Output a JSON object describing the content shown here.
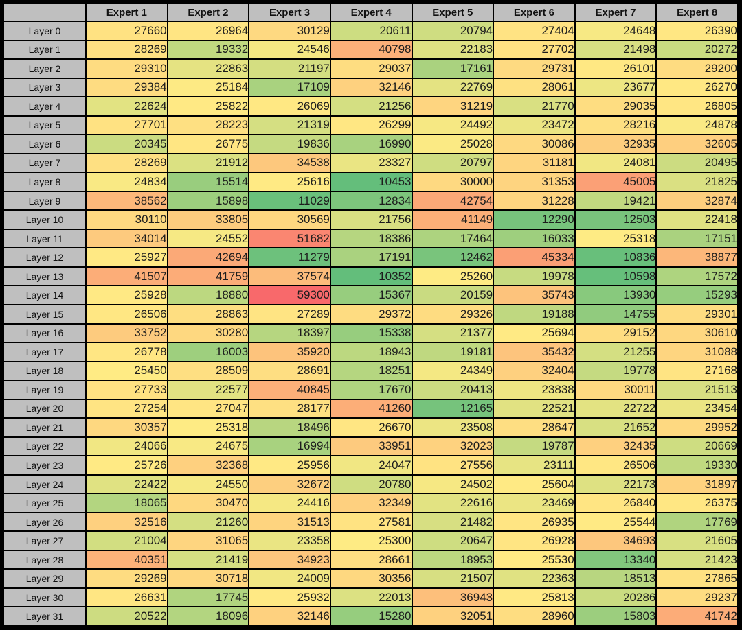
{
  "figure": {
    "background_color": "#000000",
    "grid_color": "#000000",
    "header_bg_color": "#BFBFBF",
    "header_text_color": "#111111",
    "cell_text_color": "#1d1d1d",
    "corner_label": ""
  },
  "chart_data": {
    "type": "heatmap",
    "title": "",
    "xlabel": "",
    "ylabel": "",
    "legend": "none",
    "x_labels": [
      "Expert 1",
      "Expert 2",
      "Expert 3",
      "Expert 4",
      "Expert 5",
      "Expert 6",
      "Expert 7",
      "Expert 8"
    ],
    "y_labels": [
      "Layer 0",
      "Layer 1",
      "Layer 2",
      "Layer 3",
      "Layer 4",
      "Layer 5",
      "Layer 6",
      "Layer 7",
      "Layer 8",
      "Layer 9",
      "Layer 10",
      "Layer 11",
      "Layer 12",
      "Layer 13",
      "Layer 14",
      "Layer 15",
      "Layer 16",
      "Layer 17",
      "Layer 18",
      "Layer 19",
      "Layer 20",
      "Layer 21",
      "Layer 22",
      "Layer 23",
      "Layer 24",
      "Layer 25",
      "Layer 26",
      "Layer 27",
      "Layer 28",
      "Layer 29",
      "Layer 30",
      "Layer 31"
    ],
    "values": [
      [
        27660,
        26964,
        30129,
        20611,
        20794,
        27404,
        24648,
        26390
      ],
      [
        28269,
        19332,
        24546,
        40798,
        22183,
        27702,
        21498,
        20272
      ],
      [
        29310,
        22863,
        21197,
        29037,
        17161,
        29731,
        26101,
        29200
      ],
      [
        29384,
        25184,
        17109,
        32146,
        22769,
        28061,
        23677,
        26270
      ],
      [
        22624,
        25822,
        26069,
        21256,
        31219,
        21770,
        29035,
        26805
      ],
      [
        27701,
        28223,
        21319,
        26299,
        24492,
        23472,
        28216,
        24878
      ],
      [
        20345,
        26775,
        19836,
        16990,
        25028,
        30086,
        32935,
        32605
      ],
      [
        28269,
        21912,
        34538,
        23327,
        20797,
        31181,
        24081,
        20495
      ],
      [
        24834,
        15514,
        25616,
        10453,
        30000,
        31353,
        45005,
        21825
      ],
      [
        38562,
        15898,
        11029,
        12834,
        42754,
        31228,
        19421,
        32874
      ],
      [
        30110,
        33805,
        30569,
        21756,
        41149,
        12290,
        12503,
        22418
      ],
      [
        34014,
        24552,
        51682,
        18386,
        17464,
        16033,
        25318,
        17151
      ],
      [
        25927,
        42694,
        11279,
        17191,
        12462,
        45334,
        10836,
        38877
      ],
      [
        41507,
        41759,
        37574,
        10352,
        25260,
        19978,
        10598,
        17572
      ],
      [
        25928,
        18880,
        59300,
        15367,
        20159,
        35743,
        13930,
        15293
      ],
      [
        26506,
        28863,
        27289,
        29372,
        29326,
        19188,
        14755,
        29301
      ],
      [
        33752,
        30280,
        18397,
        15338,
        21377,
        25694,
        29152,
        30610
      ],
      [
        26778,
        16003,
        35920,
        18943,
        19181,
        35432,
        21255,
        31088
      ],
      [
        25450,
        28509,
        28691,
        18251,
        24349,
        32404,
        19778,
        27168
      ],
      [
        27733,
        22577,
        40845,
        17670,
        20413,
        23838,
        30011,
        21513
      ],
      [
        27254,
        27047,
        28177,
        41260,
        12165,
        22521,
        22722,
        23454
      ],
      [
        30357,
        25318,
        18496,
        26670,
        23508,
        28647,
        21652,
        29952
      ],
      [
        24066,
        24675,
        16994,
        33951,
        32023,
        19787,
        32435,
        20669
      ],
      [
        25726,
        32368,
        25956,
        24047,
        27556,
        23111,
        26506,
        19330
      ],
      [
        22422,
        24550,
        32672,
        20780,
        24502,
        25604,
        22173,
        31897
      ],
      [
        18065,
        30470,
        24416,
        32349,
        22616,
        23469,
        26840,
        26375
      ],
      [
        32516,
        21260,
        31513,
        27581,
        21482,
        26935,
        25544,
        17769
      ],
      [
        21004,
        31065,
        23358,
        25300,
        20647,
        26928,
        34693,
        21605
      ],
      [
        40351,
        21419,
        34923,
        28661,
        18953,
        25530,
        13340,
        21423
      ],
      [
        29269,
        30718,
        24009,
        30356,
        21507,
        22363,
        18513,
        27865
      ],
      [
        26631,
        17745,
        25932,
        22013,
        36943,
        25813,
        20286,
        29237
      ],
      [
        20522,
        18096,
        32146,
        15280,
        32051,
        28960,
        15803,
        41742
      ]
    ],
    "value_min": 10352,
    "value_max": 59300,
    "color_scale": {
      "low_color": "#63BE7B",
      "mid_color": "#FFEB84",
      "high_color": "#F8696B",
      "midpoint": "percentile-50"
    }
  }
}
